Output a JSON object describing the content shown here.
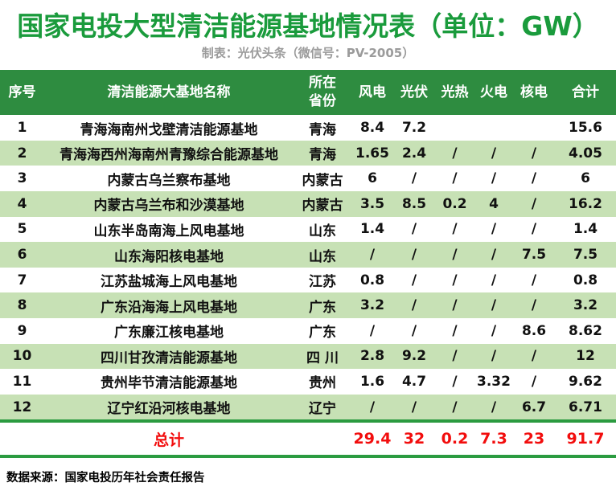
{
  "header": {
    "title": "国家电投大型清洁能源基地情况表（单位：GW）",
    "subtitle": "制表：光伏头条（微信号：PV-2005）"
  },
  "footer": {
    "source": "数据来源：国家电投历年社会责任报告"
  },
  "colors": {
    "title_green": "#1A9B3C",
    "header_bg_green": "#2E8C40",
    "alt_row_green": "#C7E1B5",
    "divider_green": "#2B9B40",
    "total_red": "#F20D0D",
    "subtitle_gray": "#9B9B9B"
  },
  "chart_data": {
    "type": "table",
    "title": "国家电投大型清洁能源基地情况表",
    "unit": "GW",
    "columns": [
      "序号",
      "清洁能源大基地名称",
      "所在省份",
      "风电",
      "光伏",
      "光热",
      "火电",
      "核电",
      "合计"
    ],
    "rows": [
      [
        "1",
        "青海海南州戈壁清洁能源基地",
        "青海",
        "8.4",
        "7.2",
        "",
        "",
        "",
        "15.6"
      ],
      [
        "2",
        "青海海西州海南州青豫综合能源基地",
        "青海",
        "1.65",
        "2.4",
        "/",
        "/",
        "/",
        "4.05"
      ],
      [
        "3",
        "内蒙古乌兰察布基地",
        "内蒙古",
        "6",
        "/",
        "/",
        "/",
        "/",
        "6"
      ],
      [
        "4",
        "内蒙古乌兰布和沙漠基地",
        "内蒙古",
        "3.5",
        "8.5",
        "0.2",
        "4",
        "/",
        "16.2"
      ],
      [
        "5",
        "山东半岛南海上风电基地",
        "山东",
        "1.4",
        "/",
        "/",
        "/",
        "/",
        "1.4"
      ],
      [
        "6",
        "山东海阳核电基地",
        "山东",
        "/",
        "/",
        "/",
        "/",
        "7.5",
        "7.5"
      ],
      [
        "7",
        "江苏盐城海上风电基地",
        "江苏",
        "0.8",
        "/",
        "/",
        "/",
        "/",
        "0.8"
      ],
      [
        "8",
        "广东沿海海上风电基地",
        "广东",
        "3.2",
        "/",
        "/",
        "/",
        "/",
        "3.2"
      ],
      [
        "9",
        "广东廉江核电基地",
        "广东",
        "/",
        "/",
        "/",
        "/",
        "8.6",
        "8.62"
      ],
      [
        "10",
        "四川甘孜清洁能源基地",
        "四 川",
        "2.8",
        "9.2",
        "/",
        "/",
        "/",
        "12"
      ],
      [
        "11",
        "贵州毕节清洁能源基地",
        "贵州",
        "1.6",
        "4.7",
        "/",
        "3.32",
        "/",
        "9.62"
      ],
      [
        "12",
        "辽宁红沿河核电基地",
        "辽宁",
        "/",
        "/",
        "/",
        "/",
        "6.7",
        "6.71"
      ]
    ],
    "total_row": [
      "",
      "总计",
      "",
      "29.4",
      "32",
      "0.2",
      "7.3",
      "23",
      "91.7"
    ]
  }
}
